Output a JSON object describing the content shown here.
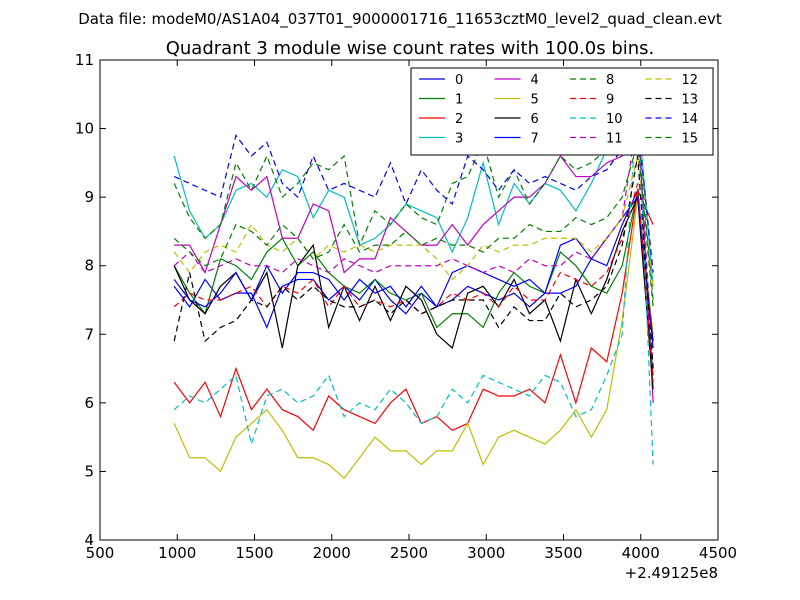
{
  "chart_data": {
    "type": "line",
    "suptitle": "Data file: modeM0/AS1A04_037T01_9000001716_11653cztM0_level2_quad_clean.evt",
    "title": "Quadrant 3 module wise count rates with 100.0s bins.",
    "xlabel": "",
    "ylabel": "",
    "x_offset_label": "+2.49125e8",
    "xlim": [
      500,
      4500
    ],
    "ylim": [
      4,
      11
    ],
    "xticks": [
      "500",
      "1000",
      "1500",
      "2000",
      "2500",
      "3000",
      "3500",
      "4000",
      "4500"
    ],
    "yticks": [
      "4",
      "5",
      "6",
      "7",
      "8",
      "9",
      "10",
      "11"
    ],
    "legend_position": "upper-right",
    "x": [
      980,
      1080,
      1180,
      1280,
      1380,
      1480,
      1580,
      1680,
      1780,
      1880,
      1980,
      2080,
      2180,
      2280,
      2380,
      2480,
      2580,
      2680,
      2780,
      2880,
      2980,
      3080,
      3180,
      3280,
      3380,
      3480,
      3580,
      3680,
      3780,
      3880,
      3980,
      4080
    ],
    "series": [
      {
        "name": "0",
        "color": "#0000ff",
        "style": "solid",
        "values": [
          7.7,
          7.4,
          7.8,
          7.5,
          7.6,
          7.6,
          7.1,
          7.7,
          7.8,
          7.8,
          7.5,
          7.7,
          7.5,
          7.8,
          7.5,
          7.3,
          7.6,
          7.4,
          7.5,
          7.7,
          7.6,
          7.5,
          7.6,
          7.4,
          7.6,
          7.6,
          7.7,
          8.1,
          8.0,
          8.6,
          9.1,
          6.8
        ]
      },
      {
        "name": "1",
        "color": "#008000",
        "style": "solid",
        "values": [
          8.0,
          7.6,
          7.3,
          8.1,
          8.0,
          7.8,
          8.2,
          8.4,
          8.0,
          8.2,
          7.9,
          7.7,
          7.6,
          7.8,
          7.6,
          7.5,
          7.6,
          7.1,
          7.3,
          7.3,
          7.1,
          7.6,
          7.9,
          7.7,
          7.6,
          8.2,
          8.0,
          7.7,
          7.6,
          8.0,
          9.1,
          6.4
        ]
      },
      {
        "name": "2",
        "color": "#ff0000",
        "style": "solid",
        "values": [
          6.3,
          6.0,
          6.3,
          5.8,
          6.5,
          5.9,
          6.2,
          5.9,
          5.8,
          5.6,
          6.1,
          5.9,
          5.8,
          5.7,
          6.0,
          6.2,
          5.7,
          5.8,
          5.6,
          5.7,
          6.2,
          6.1,
          6.1,
          6.2,
          6.0,
          6.7,
          6.0,
          6.8,
          6.6,
          7.6,
          9.1,
          8.6
        ]
      },
      {
        "name": "3",
        "color": "#00bfbf",
        "style": "solid",
        "values": [
          9.6,
          8.8,
          8.4,
          8.6,
          9.1,
          9.2,
          9.0,
          9.4,
          9.3,
          8.7,
          9.1,
          9.0,
          8.3,
          8.4,
          8.6,
          8.9,
          8.8,
          8.7,
          8.2,
          8.7,
          9.5,
          8.6,
          9.2,
          8.9,
          9.2,
          9.1,
          8.8,
          9.2,
          9.7,
          10.4,
          10.3,
          7.7
        ]
      },
      {
        "name": "4",
        "color": "#bf00bf",
        "style": "solid",
        "values": [
          8.3,
          8.3,
          7.9,
          8.6,
          9.3,
          9.1,
          9.3,
          8.4,
          8.4,
          8.9,
          8.8,
          7.9,
          8.1,
          8.1,
          8.7,
          8.5,
          8.3,
          8.3,
          8.6,
          8.3,
          8.6,
          8.8,
          9.0,
          9.0,
          9.2,
          9.6,
          9.3,
          9.3,
          9.5,
          9.6,
          10.3,
          6.0
        ]
      },
      {
        "name": "5",
        "color": "#bfbf00",
        "style": "solid",
        "values": [
          5.7,
          5.2,
          5.2,
          5.0,
          5.5,
          5.7,
          5.9,
          5.6,
          5.2,
          5.2,
          5.1,
          4.9,
          5.2,
          5.5,
          5.3,
          5.3,
          5.1,
          5.3,
          5.3,
          5.7,
          5.1,
          5.5,
          5.6,
          5.5,
          5.4,
          5.6,
          5.9,
          5.5,
          5.9,
          7.2,
          9.0,
          7.0
        ]
      },
      {
        "name": "6",
        "color": "#000000",
        "style": "solid",
        "values": [
          8.0,
          7.5,
          7.3,
          7.7,
          7.9,
          7.5,
          7.9,
          6.8,
          8.0,
          8.3,
          7.1,
          7.7,
          7.2,
          7.7,
          7.2,
          7.7,
          7.5,
          7.0,
          6.8,
          7.6,
          7.7,
          7.4,
          7.8,
          7.3,
          7.5,
          6.9,
          7.8,
          7.3,
          7.8,
          8.5,
          9.0,
          6.2
        ]
      },
      {
        "name": "7",
        "color": "#0000ff",
        "style": "solid",
        "values": [
          7.8,
          7.5,
          7.4,
          7.6,
          7.9,
          7.5,
          8.0,
          7.6,
          7.9,
          7.9,
          7.8,
          7.5,
          7.8,
          7.6,
          7.7,
          7.4,
          7.7,
          7.4,
          7.9,
          8.0,
          7.9,
          7.8,
          7.7,
          7.8,
          7.6,
          8.3,
          8.4,
          8.1,
          8.4,
          8.7,
          9.0,
          6.9
        ]
      },
      {
        "name": "8",
        "color": "#008000",
        "style": "dashed",
        "values": [
          9.2,
          8.7,
          8.4,
          8.6,
          9.5,
          9.1,
          9.6,
          9.0,
          9.2,
          9.5,
          9.4,
          9.6,
          8.3,
          8.8,
          8.6,
          8.9,
          8.7,
          8.6,
          9.2,
          9.3,
          9.8,
          9.0,
          9.4,
          8.9,
          9.2,
          9.6,
          9.4,
          9.5,
          9.7,
          9.9,
          10.0,
          7.5
        ]
      },
      {
        "name": "9",
        "color": "#ff0000",
        "style": "dashed",
        "values": [
          7.4,
          7.6,
          7.5,
          7.5,
          7.6,
          7.7,
          7.4,
          7.7,
          7.6,
          7.8,
          7.4,
          7.7,
          7.4,
          7.5,
          7.4,
          7.5,
          7.3,
          7.4,
          7.6,
          7.5,
          7.6,
          7.4,
          7.7,
          7.5,
          7.5,
          7.9,
          7.8,
          7.7,
          7.9,
          8.4,
          9.2,
          6.3
        ]
      },
      {
        "name": "10",
        "color": "#00bfbf",
        "style": "dashed",
        "values": [
          5.9,
          6.1,
          6.0,
          6.2,
          6.4,
          5.4,
          6.1,
          6.2,
          6.0,
          6.1,
          6.4,
          5.8,
          6.0,
          5.9,
          6.2,
          6.0,
          5.7,
          5.8,
          6.2,
          6.0,
          6.4,
          6.3,
          6.2,
          6.1,
          6.4,
          6.3,
          5.8,
          5.9,
          6.4,
          7.0,
          10.5,
          5.1
        ]
      },
      {
        "name": "11",
        "color": "#bf00bf",
        "style": "dashed",
        "values": [
          8.0,
          8.2,
          7.9,
          8.0,
          8.1,
          8.0,
          8.0,
          7.9,
          8.1,
          8.0,
          7.9,
          8.1,
          8.0,
          7.9,
          8.0,
          8.0,
          8.0,
          8.0,
          8.1,
          8.0,
          7.9,
          8.0,
          7.9,
          8.1,
          8.0,
          8.0,
          8.2,
          8.1,
          8.4,
          8.7,
          10.2,
          6.5
        ]
      },
      {
        "name": "12",
        "color": "#bfbf00",
        "style": "dashed",
        "values": [
          8.2,
          7.9,
          8.2,
          8.3,
          8.2,
          8.6,
          8.3,
          8.2,
          8.4,
          8.1,
          8.3,
          8.2,
          8.3,
          8.2,
          8.3,
          8.3,
          8.3,
          8.1,
          7.8,
          8.0,
          8.3,
          8.2,
          8.3,
          8.3,
          8.4,
          8.4,
          8.4,
          8.2,
          8.4,
          8.7,
          9.6,
          7.7
        ]
      },
      {
        "name": "13",
        "color": "#000000",
        "style": "dashed",
        "values": [
          6.9,
          7.9,
          6.9,
          7.1,
          7.2,
          7.5,
          7.4,
          7.7,
          7.5,
          7.7,
          7.5,
          7.4,
          7.4,
          7.5,
          7.3,
          7.5,
          7.3,
          7.4,
          7.5,
          7.5,
          7.5,
          7.1,
          7.4,
          7.2,
          7.2,
          7.6,
          7.4,
          7.5,
          7.7,
          8.3,
          9.6,
          6.5
        ]
      },
      {
        "name": "14",
        "color": "#0000ff",
        "style": "dashed",
        "values": [
          9.3,
          9.2,
          9.1,
          9.0,
          9.9,
          9.6,
          9.8,
          9.2,
          9.0,
          9.6,
          9.1,
          9.2,
          9.1,
          9.0,
          9.5,
          8.9,
          9.4,
          9.1,
          8.9,
          9.6,
          9.4,
          9.1,
          9.4,
          9.2,
          9.3,
          9.2,
          9.1,
          9.3,
          9.4,
          9.7,
          10.1,
          7.9
        ]
      },
      {
        "name": "15",
        "color": "#008000",
        "style": "dashed",
        "values": [
          8.4,
          8.2,
          8.0,
          8.1,
          8.6,
          8.5,
          8.3,
          8.6,
          8.4,
          8.1,
          8.2,
          8.6,
          8.2,
          8.3,
          8.3,
          8.5,
          8.3,
          8.4,
          8.3,
          8.3,
          8.2,
          8.4,
          8.4,
          8.6,
          8.5,
          8.5,
          8.7,
          8.6,
          8.7,
          9.0,
          9.8,
          7.4
        ]
      }
    ]
  }
}
